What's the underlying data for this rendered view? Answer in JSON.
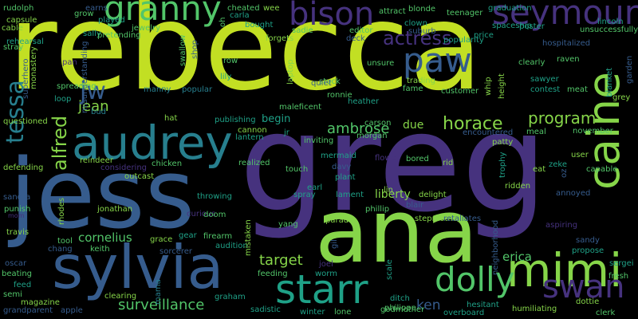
{
  "background_color": "#000000",
  "palette": {
    "yellow": "#c2df23",
    "lime": "#86d549",
    "green": "#52c569",
    "teal": "#1fa187",
    "teal_blue": "#277f8e",
    "blue": "#365c8d",
    "indigo": "#46327e",
    "purple": "#440154"
  },
  "words": [
    "rebecca",
    "greg",
    "jess",
    "ana",
    "sylvia",
    "mimi",
    "audrey",
    "caine",
    "paw",
    "bison",
    "granny",
    "seymour",
    "starr",
    "dolly",
    "swan",
    "tessa",
    "horace",
    "program",
    "target",
    "actress",
    "alfred",
    "jean",
    "jw",
    "ambrose",
    "surveillance",
    "cornelius",
    "liberty",
    "erica",
    "begin",
    "due",
    "ken",
    "rudolph",
    "capsule",
    "cable",
    "rehearsal",
    "stray",
    "monastery",
    "superhero",
    "questioned",
    "defending",
    "sandra",
    "punish",
    "mom",
    "travis",
    "oscar",
    "beating",
    "feed",
    "semi",
    "grandparent",
    "magazine",
    "apple",
    "chang",
    "keith",
    "tool",
    "jonathan",
    "rhodes",
    "curious",
    "grace",
    "gear",
    "firearm",
    "sorcerer",
    "audition",
    "mistaken",
    "feeding",
    "graham",
    "clearing",
    "mama",
    "sadistic",
    "winter",
    "lone",
    "godmother",
    "overboard",
    "hesitant",
    "humiliating",
    "dottie",
    "clerk",
    "fresh",
    "sergei",
    "propose",
    "sandy",
    "aspiring",
    "neighborhood",
    "annoyed",
    "capable",
    "zeke",
    "eat",
    "oz",
    "november",
    "meal",
    "user",
    "trophy",
    "ridden",
    "patty",
    "encountered",
    "meat",
    "grey",
    "contest",
    "sawyer",
    "clearly",
    "raven",
    "blanket",
    "garden",
    "unsuccessfully",
    "lincoln",
    "poster",
    "spaceship",
    "price",
    "teenager",
    "graduation",
    "blonde",
    "attract",
    "clown",
    "suburb",
    "popularity",
    "unsure",
    "deck",
    "editor",
    "sadie",
    "forgets",
    "bought",
    "carla",
    "cheated",
    "wee",
    "oh",
    "grow",
    "played",
    "sally",
    "jewelry",
    "pretending",
    "swallow",
    "earns",
    "row",
    "stuck",
    "lily",
    "manny",
    "popular",
    "shop",
    "misunderstanding",
    "spreading",
    "loop",
    "bud",
    "reindeer",
    "considering",
    "chicken",
    "outcast",
    "hat",
    "publishing",
    "lantern",
    "cannon",
    "realized",
    "touch",
    "jr",
    "inviting",
    "mermaid",
    "davy",
    "earl",
    "spray",
    "lament",
    "plant",
    "bored",
    "flower",
    "lin",
    "phillip",
    "blair",
    "parade",
    "stepmother",
    "retaliates",
    "gil",
    "joel",
    "worm",
    "scale",
    "philippe",
    "ditch",
    "yang",
    "doom",
    "throwing",
    "delight",
    "rid",
    "carson",
    "morgan",
    "heather",
    "ronnie",
    "quiet",
    "fame",
    "customer",
    "trading",
    "whip",
    "height",
    "laptop",
    "maleficent",
    "hospitalized",
    "pan",
    "li",
    "wd"
  ]
}
